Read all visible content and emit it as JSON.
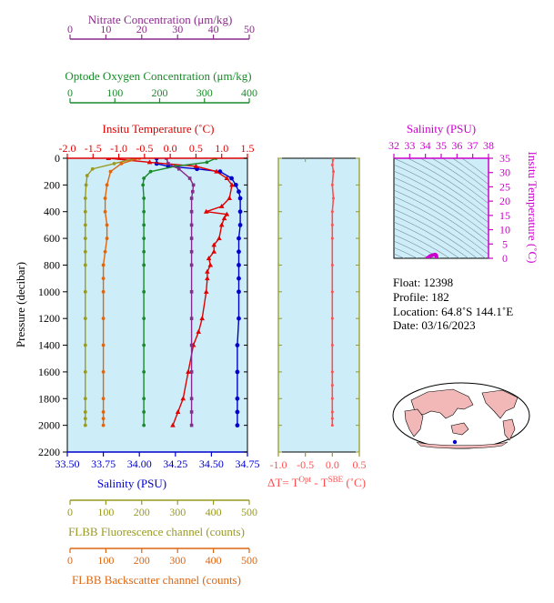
{
  "colors": {
    "nitrate": "#8a2a8a",
    "oxygen": "#1a8a2a",
    "temperature": "#e00000",
    "salinity": "#0000cc",
    "fluorescence": "#999a22",
    "backscatter": "#dd6611",
    "delta_t": "#ff5050",
    "ts_axis": "#cc00cc",
    "panel_bg": "#cdeef9",
    "land": "#f2b8b8"
  },
  "labels": {
    "nitrate_axis": "Nitrate Concentration (μm/kg)",
    "oxygen_axis": "Optode Oxygen Concentration (μm/kg)",
    "temperature_axis": "Insitu Temperature (˚C)",
    "pressure_axis": "Pressure (decibar)",
    "salinity_axis": "Salinity (PSU)",
    "fluorescence_axis": "FLBB Fluorescence channel (counts)",
    "backscatter_axis": "FLBB Backscatter channel (counts)",
    "delta_t_prefix": "ΔT= T",
    "delta_t_sup1": "Opt",
    "delta_t_mid": " - T",
    "delta_t_sup2": "SBE",
    "delta_t_suffix": " (˚C)",
    "ts_top_axis": "Salinity (PSU)",
    "ts_right_axis": "Insitu Temperature (˚C)"
  },
  "float_info": {
    "float_line": "Float:  12398",
    "profile_line": "Profile:  182",
    "location_line": "Location:  64.8˚S  144.1˚E",
    "date_line": "Date:  03/16/2023"
  },
  "chart_data": [
    {
      "type": "line",
      "name": "main-profile",
      "y_axis": {
        "label": "Pressure (decibar)",
        "range": [
          0,
          2200
        ],
        "inverted": true,
        "ticks": [
          0,
          200,
          400,
          600,
          800,
          1000,
          1200,
          1400,
          1600,
          1800,
          2000,
          2200
        ]
      },
      "x_axes": {
        "salinity": {
          "label": "Salinity (PSU)",
          "range": [
            33.5,
            34.75
          ],
          "ticks": [
            33.5,
            33.75,
            34.0,
            34.25,
            34.5,
            34.75
          ],
          "tick_labels": [
            "33.50",
            "33.75",
            "34.00",
            "34.25",
            "34.50",
            "34.75"
          ]
        },
        "temperature": {
          "label": "Insitu Temperature (˚C)",
          "range": [
            -2.0,
            1.5
          ],
          "ticks": [
            -2.0,
            -1.5,
            -1.0,
            -0.5,
            0.0,
            0.5,
            1.0,
            1.5
          ],
          "tick_labels": [
            "-2.0",
            "-1.5",
            "-1.0",
            "-0.5",
            "0.0",
            "0.5",
            "1.0",
            "1.5"
          ]
        },
        "oxygen": {
          "label": "Optode Oxygen Concentration (μm/kg)",
          "range": [
            0,
            400
          ],
          "ticks": [
            0,
            100,
            200,
            300,
            400
          ],
          "tick_labels": [
            "0",
            "100",
            "200",
            "300",
            "400"
          ]
        },
        "nitrate": {
          "label": "Nitrate Concentration (μm/kg)",
          "range": [
            0,
            50
          ],
          "ticks": [
            0,
            10,
            20,
            30,
            40,
            50
          ],
          "tick_labels": [
            "0",
            "10",
            "20",
            "30",
            "40",
            "50"
          ]
        },
        "fluorescence": {
          "label": "FLBB Fluorescence channel (counts)",
          "range": [
            0,
            500
          ],
          "ticks": [
            0,
            100,
            200,
            300,
            400,
            500
          ],
          "tick_labels": [
            "0",
            "100",
            "200",
            "300",
            "400",
            "500"
          ]
        },
        "backscatter": {
          "label": "FLBB Backscatter channel (counts)",
          "range": [
            0,
            500
          ],
          "ticks": [
            0,
            100,
            200,
            300,
            400,
            500
          ],
          "tick_labels": [
            "0",
            "100",
            "200",
            "300",
            "400",
            "500"
          ]
        }
      },
      "series": [
        {
          "key": "salinity",
          "x": [
            34.12,
            34.12,
            34.2,
            34.4,
            34.56,
            34.64,
            34.67,
            34.69,
            34.7,
            34.7,
            34.7,
            34.69,
            34.69,
            34.69,
            34.69,
            34.69,
            34.69,
            34.68,
            34.68,
            34.68,
            34.68,
            34.68
          ],
          "y": [
            0,
            40,
            60,
            80,
            100,
            150,
            200,
            250,
            300,
            400,
            500,
            600,
            700,
            800,
            900,
            1000,
            1200,
            1400,
            1600,
            1800,
            1900,
            2000
          ]
        },
        {
          "key": "temperature",
          "x": [
            -1.2,
            -0.4,
            0.5,
            0.9,
            1.1,
            1.2,
            1.15,
            1.0,
            0.7,
            1.1,
            1.05,
            1.0,
            0.95,
            0.85,
            0.85,
            0.75,
            0.78,
            0.72,
            0.72,
            0.7,
            0.62,
            0.55,
            0.45,
            0.35,
            0.25,
            0.15,
            0.05
          ],
          "y": [
            0,
            30,
            60,
            100,
            150,
            200,
            300,
            360,
            400,
            420,
            450,
            500,
            600,
            650,
            700,
            750,
            800,
            850,
            900,
            1000,
            1200,
            1300,
            1400,
            1600,
            1800,
            1900,
            2000
          ]
        },
        {
          "key": "oxygen",
          "x": [
            330,
            310,
            240,
            185,
            170,
            168,
            170,
            170,
            170,
            170,
            170,
            170,
            170,
            170,
            170,
            170,
            170,
            170,
            170
          ],
          "y": [
            0,
            30,
            60,
            100,
            150,
            200,
            300,
            400,
            500,
            600,
            700,
            800,
            1000,
            1200,
            1400,
            1600,
            1800,
            1900,
            2000
          ]
        },
        {
          "key": "nitrate",
          "x": [
            27.5,
            28.0,
            31.0,
            34.0,
            35.0,
            34.8,
            34.5,
            34.5,
            34.5,
            34.5,
            34.5,
            34.5,
            34.5,
            34.5,
            34.5,
            34.5,
            34.5,
            34.5,
            34.5
          ],
          "y": [
            0,
            40,
            80,
            150,
            200,
            250,
            300,
            400,
            500,
            600,
            700,
            800,
            1000,
            1200,
            1400,
            1600,
            1800,
            1900,
            2000
          ]
        },
        {
          "key": "fluorescence",
          "x": [
            190,
            130,
            70,
            55,
            52,
            50,
            50,
            50,
            50,
            50,
            50,
            50,
            50,
            50,
            50,
            50,
            50,
            50,
            50
          ],
          "y": [
            0,
            40,
            80,
            130,
            200,
            300,
            400,
            500,
            600,
            700,
            800,
            1000,
            1200,
            1400,
            1600,
            1800,
            1900,
            1950,
            2000
          ]
        },
        {
          "key": "backscatter",
          "x": [
            200,
            150,
            120,
            110,
            105,
            105,
            110,
            110,
            105,
            100,
            100,
            100,
            100,
            100,
            100,
            100,
            100,
            100,
            100
          ],
          "y": [
            0,
            40,
            100,
            200,
            300,
            400,
            500,
            600,
            700,
            800,
            900,
            1000,
            1200,
            1400,
            1600,
            1800,
            1900,
            1950,
            2000
          ]
        }
      ]
    },
    {
      "type": "line",
      "name": "delta-t-profile",
      "y_axis": {
        "range": [
          0,
          2200
        ],
        "inverted": true
      },
      "x_axis": {
        "range": [
          -1.0,
          0.5
        ],
        "ticks": [
          -1.0,
          -0.5,
          0.0,
          0.5
        ],
        "tick_labels": [
          "-1.0",
          "-0.5",
          "0.0",
          "0.5"
        ]
      },
      "series": [
        {
          "key": "delta_t",
          "x": [
            0.02,
            0.0,
            0.02,
            0.0,
            0.02,
            0.0,
            0.0,
            0.0,
            0.0,
            0.0,
            0.0,
            0.0,
            0.0,
            0.0,
            0.0,
            0.0,
            0.0,
            0.0
          ],
          "y": [
            0,
            50,
            100,
            200,
            300,
            400,
            500,
            600,
            800,
            1000,
            1200,
            1400,
            1600,
            1700,
            1800,
            1900,
            1950,
            2000
          ]
        }
      ]
    },
    {
      "type": "scatter",
      "name": "ts-diagram",
      "x_axis": {
        "label": "Salinity (PSU)",
        "range": [
          32,
          38
        ],
        "ticks": [
          32,
          33,
          34,
          35,
          36,
          37,
          38
        ],
        "tick_labels": [
          "32",
          "33",
          "34",
          "35",
          "36",
          "37",
          "38"
        ]
      },
      "y_axis": {
        "label": "Insitu Temperature (˚C)",
        "range": [
          0,
          35
        ],
        "ticks": [
          0,
          5,
          10,
          15,
          20,
          25,
          30,
          35
        ],
        "tick_labels": [
          "0",
          "5",
          "10",
          "15",
          "20",
          "25",
          "30",
          "35"
        ]
      },
      "series": [
        {
          "key": "ts",
          "x": [
            34.1,
            34.2,
            34.3,
            34.4,
            34.5,
            34.6,
            34.65,
            34.68,
            34.7,
            34.7
          ],
          "y": [
            0.0,
            0.4,
            0.8,
            1.0,
            1.2,
            1.3,
            1.2,
            1.0,
            0.8,
            0.3
          ]
        }
      ]
    }
  ]
}
